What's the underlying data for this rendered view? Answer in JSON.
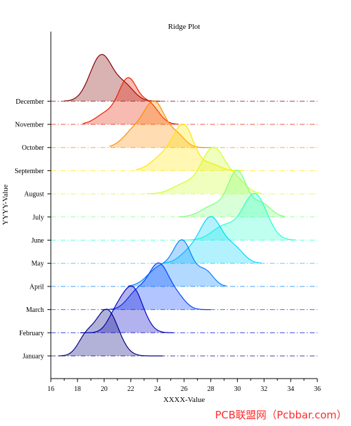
{
  "chart_data": {
    "type": "ridge",
    "title": "Ridge Plot",
    "xlabel": "XXXX-Value",
    "ylabel": "YYYY-Value",
    "xlim": [
      16,
      36
    ],
    "xticks": [
      16,
      18,
      20,
      22,
      24,
      26,
      28,
      30,
      32,
      34,
      36
    ],
    "categories": [
      "January",
      "February",
      "March",
      "April",
      "May",
      "June",
      "July",
      "August",
      "September",
      "October",
      "November",
      "December"
    ],
    "series": [
      {
        "name": "January",
        "color": "#000080",
        "range": [
          16.6,
          24.4
        ],
        "peaks": [
          [
            20.2,
            1.0,
            0.85
          ],
          [
            18.6,
            0.35,
            0.6
          ]
        ]
      },
      {
        "name": "February",
        "color": "#0000c8",
        "range": [
          18.2,
          25.2
        ],
        "peaks": [
          [
            22.1,
            1.0,
            0.8
          ],
          [
            20.8,
            0.3,
            0.6
          ]
        ]
      },
      {
        "name": "March",
        "color": "#0040ff",
        "range": [
          19.8,
          28.0
        ],
        "peaks": [
          [
            24.1,
            1.0,
            0.8
          ],
          [
            22.4,
            0.35,
            0.7
          ],
          [
            25.6,
            0.2,
            0.6
          ]
        ]
      },
      {
        "name": "April",
        "color": "#0080ff",
        "range": [
          21.8,
          29.2
        ],
        "peaks": [
          [
            25.9,
            1.0,
            0.7
          ],
          [
            24.2,
            0.45,
            0.9
          ],
          [
            27.6,
            0.35,
            0.6
          ]
        ]
      },
      {
        "name": "May",
        "color": "#00d4ff",
        "range": [
          24.4,
          31.8
        ],
        "peaks": [
          [
            28.0,
            1.0,
            0.85
          ],
          [
            26.3,
            0.2,
            0.7
          ],
          [
            29.8,
            0.3,
            0.7
          ]
        ]
      },
      {
        "name": "June",
        "color": "#29ffce",
        "range": [
          25.8,
          34.4
        ],
        "peaks": [
          [
            31.3,
            1.0,
            0.9
          ],
          [
            29.0,
            0.3,
            0.9
          ]
        ]
      },
      {
        "name": "July",
        "color": "#7dff7a",
        "range": [
          25.6,
          33.6
        ],
        "peaks": [
          [
            30.0,
            1.0,
            0.7
          ],
          [
            28.2,
            0.25,
            0.9
          ],
          [
            31.8,
            0.3,
            0.7
          ]
        ]
      },
      {
        "name": "August",
        "color": "#ceff29",
        "range": [
          23.2,
          31.8
        ],
        "peaks": [
          [
            28.2,
            1.0,
            0.9
          ],
          [
            26.0,
            0.2,
            0.9
          ],
          [
            30.0,
            0.25,
            0.7
          ]
        ]
      },
      {
        "name": "September",
        "color": "#ffe600",
        "range": [
          22.4,
          30.4
        ],
        "peaks": [
          [
            26.0,
            1.0,
            0.75
          ],
          [
            24.5,
            0.35,
            0.9
          ],
          [
            28.0,
            0.15,
            0.7
          ]
        ]
      },
      {
        "name": "October",
        "color": "#ff8c00",
        "range": [
          20.4,
          28.0
        ],
        "peaks": [
          [
            23.8,
            1.0,
            0.8
          ],
          [
            22.2,
            0.35,
            0.8
          ],
          [
            25.5,
            0.25,
            0.6
          ]
        ]
      },
      {
        "name": "November",
        "color": "#e81e00",
        "range": [
          18.4,
          25.6
        ],
        "peaks": [
          [
            21.8,
            1.0,
            0.7
          ],
          [
            20.2,
            0.25,
            0.8
          ],
          [
            23.4,
            0.45,
            0.7
          ]
        ]
      },
      {
        "name": "December",
        "color": "#800000",
        "range": [
          17.0,
          24.2
        ],
        "peaks": [
          [
            19.8,
            1.0,
            0.85
          ],
          [
            21.6,
            0.3,
            0.7
          ]
        ]
      }
    ]
  },
  "watermark": "PCB联盟网（Pcbbar.com）"
}
